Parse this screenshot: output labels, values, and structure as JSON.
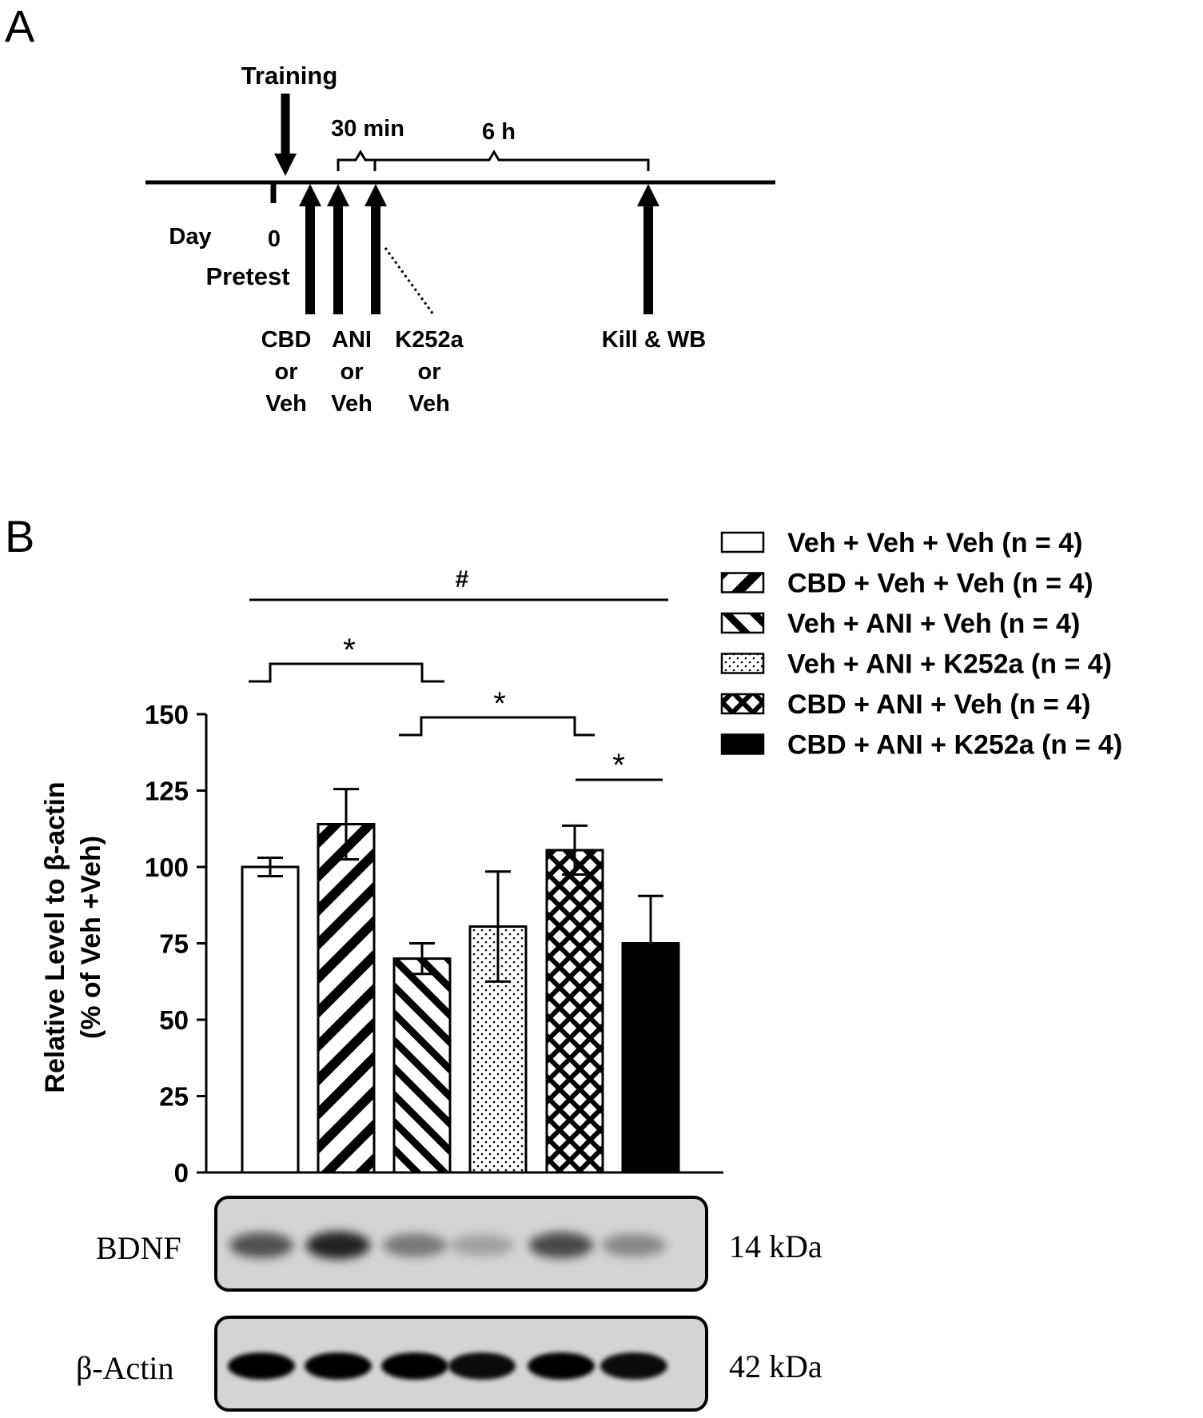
{
  "panel_a": {
    "label": "A",
    "training": "Training",
    "interval_30": "30 min",
    "interval_6h": "6 h",
    "day": "Day",
    "day_value": "0",
    "pretest": "Pretest",
    "inj1": [
      "CBD",
      "or",
      "Veh"
    ],
    "inj2": [
      "ANI",
      "or",
      "Veh"
    ],
    "inj3": [
      "K252a",
      "or",
      "Veh"
    ],
    "kill": "Kill & WB"
  },
  "panel_b": {
    "label": "B",
    "hash_label": "#",
    "star_label": "*"
  },
  "colors": {
    "ink": "#000000",
    "paper": "#ffffff",
    "blot_bg": "#d4d4d4"
  },
  "chart_data": {
    "type": "bar",
    "ylabel_line1": "Relative Level to β-actin",
    "ylabel_line2": "(% of Veh +Veh)",
    "ylim": [
      0,
      150
    ],
    "yticks": [
      "0",
      "25",
      "50",
      "75",
      "100",
      "125",
      "150"
    ],
    "legend_position": "top-right",
    "series": [
      {
        "name": "Veh + Veh + Veh (n = 4)",
        "value": 100,
        "error": 3,
        "pattern": "open"
      },
      {
        "name": "CBD + Veh + Veh (n = 4)",
        "value": 114,
        "error": 11.5,
        "pattern": "diagonal-up"
      },
      {
        "name": "Veh + ANI + Veh (n = 4)",
        "value": 70,
        "error": 5,
        "pattern": "diagonal-down"
      },
      {
        "name": "Veh + ANI + K252a (n = 4)",
        "value": 80.5,
        "error": 18,
        "pattern": "dotted"
      },
      {
        "name": "CBD + ANI + Veh (n = 4)",
        "value": 105.5,
        "error": 8,
        "pattern": "crosshatch"
      },
      {
        "name": "CBD + ANI + K252a (n = 4)",
        "value": 75,
        "error": 15.5,
        "pattern": "solid"
      }
    ]
  },
  "blots": [
    {
      "protein": "BDNF",
      "size": "14 kDa",
      "band_intensity": [
        0.65,
        0.88,
        0.45,
        0.25,
        0.7,
        0.38
      ]
    },
    {
      "protein": "β-Actin",
      "size": "42 kDa",
      "band_intensity": [
        1,
        1,
        1,
        0.95,
        1,
        0.95
      ]
    }
  ]
}
